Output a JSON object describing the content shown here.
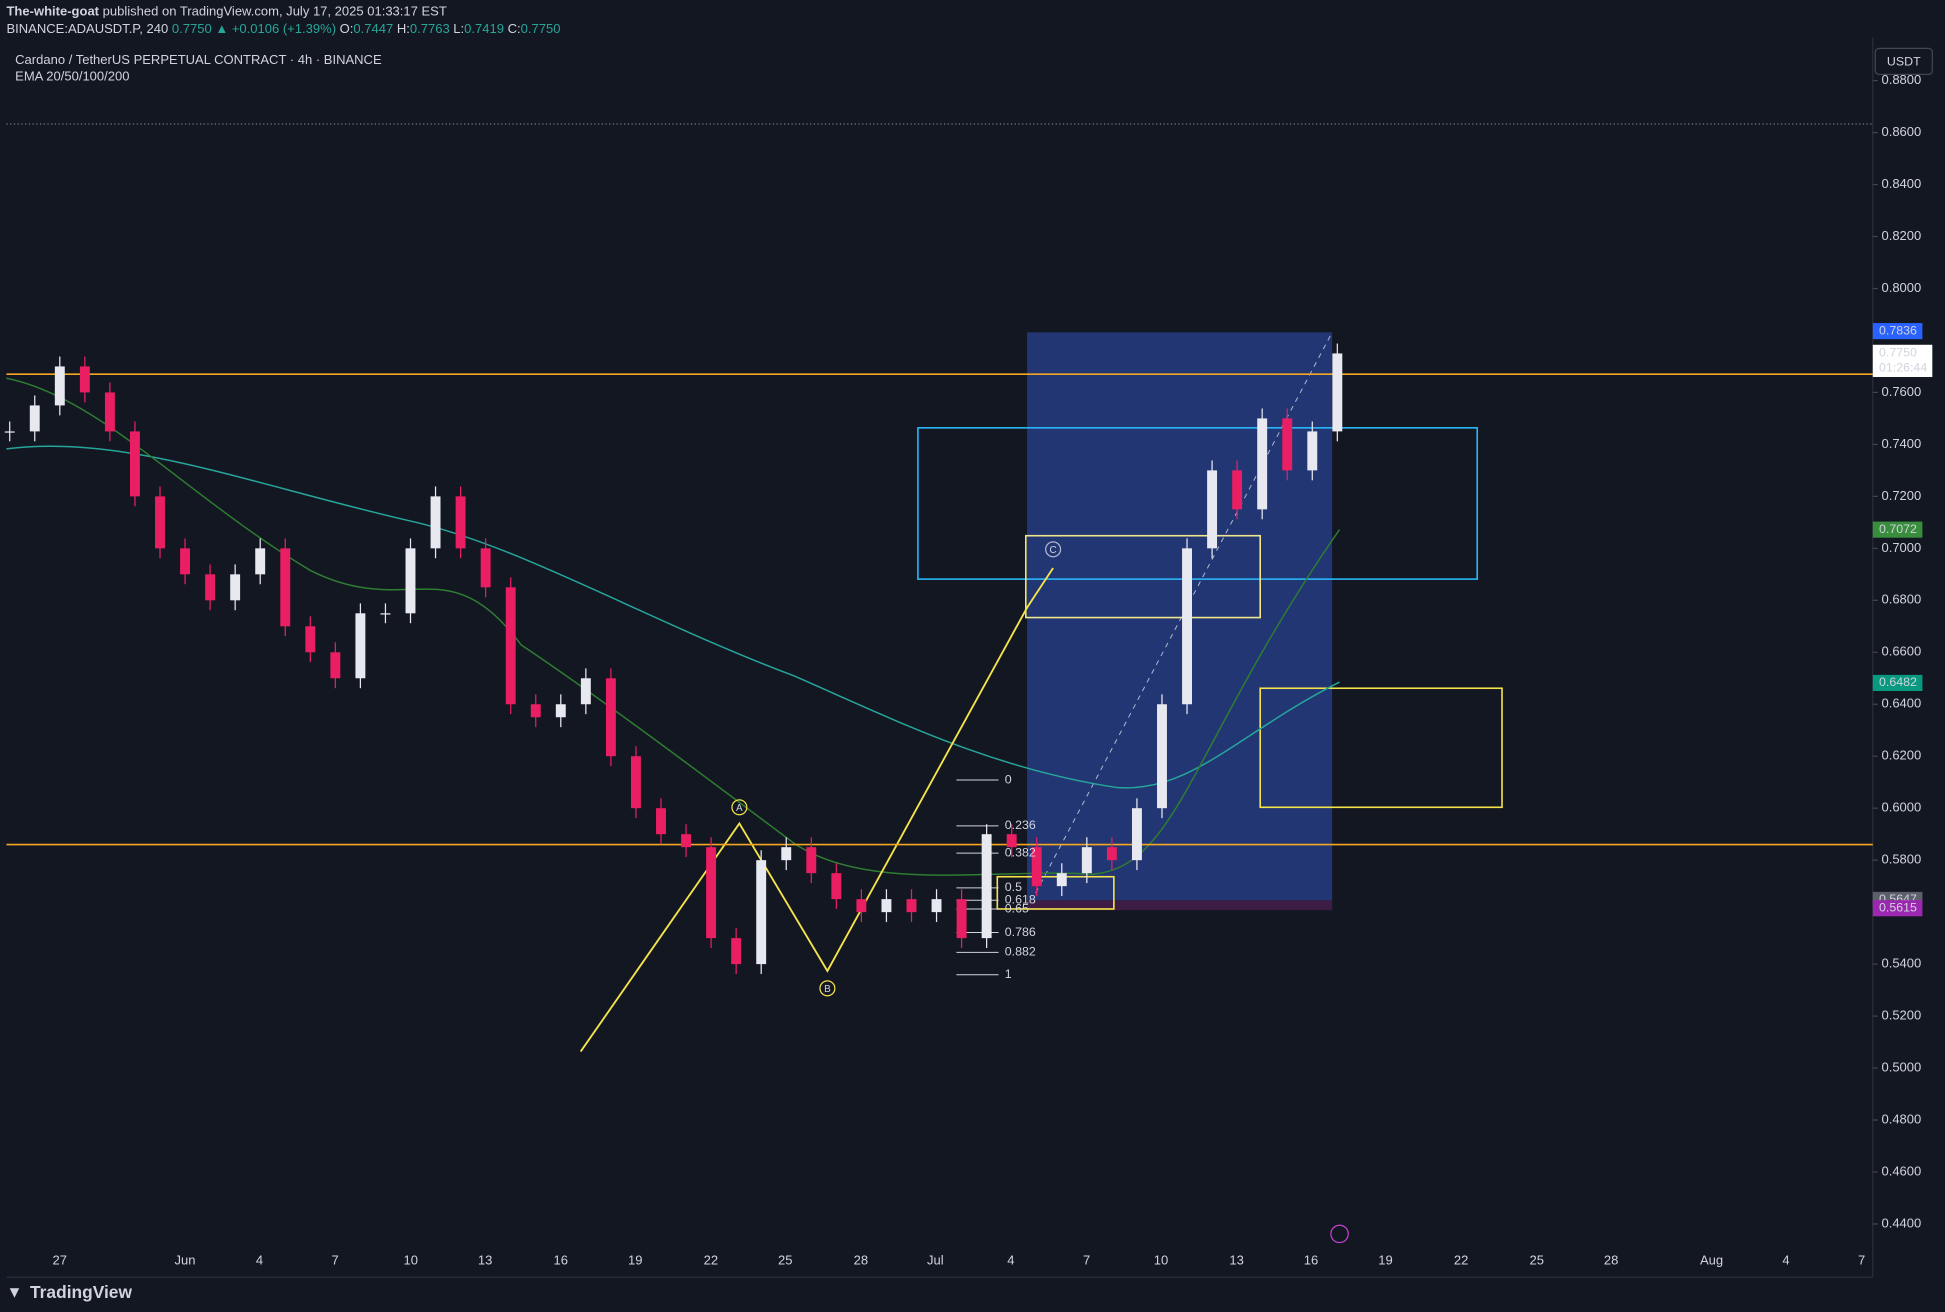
{
  "publisher": {
    "author": "The-white-goat",
    "line": "published on TradingView.com, July 17, 2025 01:33:17 EST"
  },
  "ticker": {
    "symbol": "BINANCE:ADAUSDT.P, 240",
    "last": "0.7750",
    "change": "▲ +0.0106 (+1.39%)",
    "open_label": "O:",
    "open": "0.7447",
    "high_label": "H:",
    "high": "0.7763",
    "low_label": "L:",
    "low": "0.7419",
    "close_label": "C:",
    "close": "0.7750"
  },
  "legend": {
    "title": "Cardano / TetherUS PERPETUAL CONTRACT · 4h · BINANCE",
    "indicator": "EMA 20/50/100/200"
  },
  "currency_button": "USDT",
  "price_axis": {
    "range": [
      0.44,
      0.88
    ],
    "ticks": [
      {
        "value": 0.88,
        "label": "0.8800"
      },
      {
        "value": 0.86,
        "label": "0.8600"
      },
      {
        "value": 0.84,
        "label": "0.8400"
      },
      {
        "value": 0.82,
        "label": "0.8200"
      },
      {
        "value": 0.8,
        "label": "0.8000"
      },
      {
        "value": 0.76,
        "label": "0.7600"
      },
      {
        "value": 0.74,
        "label": "0.7400"
      },
      {
        "value": 0.72,
        "label": "0.7200"
      },
      {
        "value": 0.7,
        "label": "0.7000"
      },
      {
        "value": 0.68,
        "label": "0.6800"
      },
      {
        "value": 0.66,
        "label": "0.6600"
      },
      {
        "value": 0.64,
        "label": "0.6400"
      },
      {
        "value": 0.62,
        "label": "0.6200"
      },
      {
        "value": 0.6,
        "label": "0.6000"
      },
      {
        "value": 0.58,
        "label": "0.5800"
      },
      {
        "value": 0.54,
        "label": "0.5400"
      },
      {
        "value": 0.52,
        "label": "0.5200"
      },
      {
        "value": 0.5,
        "label": "0.5000"
      },
      {
        "value": 0.48,
        "label": "0.4800"
      },
      {
        "value": 0.46,
        "label": "0.4600"
      },
      {
        "value": 0.44,
        "label": "0.4400"
      }
    ]
  },
  "price_tags": [
    {
      "value": 0.7836,
      "label": "0.7836",
      "color": "#2962ff"
    },
    {
      "value": 0.7072,
      "label": "0.7072",
      "color": "#388e3c"
    },
    {
      "value": 0.6482,
      "label": "0.6482",
      "color": "#089981"
    },
    {
      "value": 0.5647,
      "label": "0.5647",
      "color": "#5d606b"
    },
    {
      "value": 0.5615,
      "label": "0.5615",
      "color": "#9c27b0"
    }
  ],
  "last_price_tag": {
    "value": 0.775,
    "label": "0.7750",
    "countdown": "01:26:44"
  },
  "time_axis": [
    "27",
    "Jun",
    "4",
    "7",
    "10",
    "13",
    "16",
    "19",
    "22",
    "25",
    "28",
    "Jul",
    "4",
    "7",
    "10",
    "13",
    "16",
    "19",
    "22",
    "25",
    "28",
    "Aug",
    "4",
    "7"
  ],
  "levels": [
    0.767,
    0.586
  ],
  "fib_labels": [
    "0",
    "0.236",
    "0.382",
    "0.5",
    "0.618",
    "0.65",
    "0.786",
    "0.882",
    "1"
  ],
  "wave_labels": [
    "A",
    "B",
    "C"
  ],
  "price_path": {
    "closes": [
      0.745,
      0.755,
      0.77,
      0.76,
      0.745,
      0.72,
      0.7,
      0.69,
      0.68,
      0.69,
      0.7,
      0.67,
      0.66,
      0.65,
      0.675,
      0.675,
      0.7,
      0.72,
      0.7,
      0.685,
      0.64,
      0.635,
      0.64,
      0.65,
      0.62,
      0.6,
      0.59,
      0.585,
      0.55,
      0.54,
      0.58,
      0.585,
      0.575,
      0.565,
      0.56,
      0.565,
      0.56,
      0.565,
      0.55,
      0.59,
      0.585,
      0.57,
      0.575,
      0.585,
      0.58,
      0.6,
      0.64,
      0.7,
      0.73,
      0.715,
      0.75,
      0.73,
      0.745,
      0.775
    ]
  },
  "brand": "TradingView"
}
